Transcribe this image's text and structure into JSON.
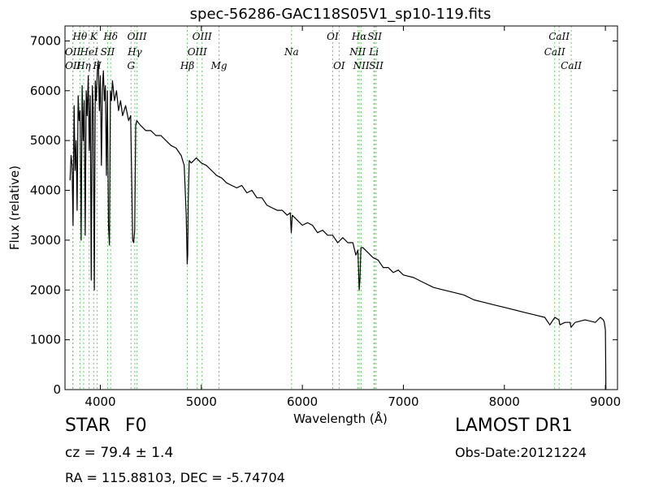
{
  "chart_data": {
    "type": "line",
    "title": "spec-56286-GAC118S05V1_sp10-119.fits",
    "xlabel": "Wavelength (Å)",
    "ylabel": "Flux (relative)",
    "xlim": [
      3650,
      9120
    ],
    "ylim": [
      0,
      7300
    ],
    "xticks": [
      4000,
      5000,
      6000,
      7000,
      8000,
      9000
    ],
    "yticks": [
      0,
      1000,
      2000,
      3000,
      4000,
      5000,
      6000,
      7000
    ],
    "grid": false,
    "line_color": "#000000",
    "marker_color": "#66cc66",
    "series": [
      {
        "x": [
          3700,
          3710,
          3720,
          3730,
          3740,
          3750,
          3760,
          3770,
          3780,
          3790,
          3800,
          3810,
          3820,
          3830,
          3840,
          3850,
          3860,
          3870,
          3880,
          3890,
          3900,
          3910,
          3920,
          3930,
          3940,
          3950,
          3960,
          3970,
          3980,
          3990,
          4000,
          4010,
          4020,
          4030,
          4040,
          4050,
          4060,
          4070,
          4080,
          4090,
          4100,
          4110,
          4120,
          4140,
          4160,
          4180,
          4200,
          4220,
          4250,
          4280,
          4300,
          4320,
          4330,
          4340,
          4350,
          4360,
          4380,
          4400,
          4450,
          4500,
          4550,
          4600,
          4650,
          4700,
          4750,
          4800,
          4830,
          4850,
          4860,
          4865,
          4870,
          4880,
          4900,
          4950,
          5000,
          5050,
          5100,
          5150,
          5200,
          5250,
          5300,
          5350,
          5400,
          5450,
          5500,
          5550,
          5600,
          5650,
          5700,
          5750,
          5800,
          5850,
          5880,
          5890,
          5900,
          5950,
          6000,
          6050,
          6100,
          6150,
          6200,
          6250,
          6300,
          6350,
          6400,
          6450,
          6500,
          6530,
          6550,
          6560,
          6563,
          6570,
          6580,
          6600,
          6650,
          6700,
          6750,
          6800,
          6850,
          6900,
          6950,
          7000,
          7100,
          7200,
          7300,
          7400,
          7500,
          7600,
          7700,
          7800,
          7900,
          8000,
          8100,
          8200,
          8300,
          8400,
          8450,
          8500,
          8540,
          8550,
          8600,
          8650,
          8660,
          8700,
          8800,
          8900,
          8950,
          8980,
          8990,
          9000,
          9003,
          9005,
          9010
        ],
        "y": [
          4200,
          4700,
          4500,
          3300,
          5700,
          4400,
          5000,
          3600,
          5900,
          5400,
          5600,
          3000,
          6100,
          5000,
          5800,
          3100,
          6000,
          5500,
          6300,
          4800,
          5900,
          2200,
          6100,
          5600,
          2000,
          6200,
          5800,
          6400,
          6600,
          5600,
          6300,
          4500,
          6000,
          6400,
          5800,
          6100,
          4300,
          6000,
          3300,
          2900,
          6000,
          5800,
          6200,
          5800,
          6000,
          5600,
          5800,
          5500,
          5700,
          5400,
          5500,
          3000,
          2950,
          3200,
          5300,
          5400,
          5350,
          5300,
          5200,
          5200,
          5100,
          5100,
          5000,
          4900,
          4850,
          4700,
          4500,
          3500,
          2520,
          2700,
          3800,
          4600,
          4550,
          4650,
          4550,
          4500,
          4400,
          4300,
          4250,
          4150,
          4100,
          4050,
          4100,
          3950,
          4000,
          3850,
          3850,
          3700,
          3650,
          3600,
          3600,
          3500,
          3550,
          3150,
          3500,
          3400,
          3300,
          3350,
          3300,
          3150,
          3200,
          3100,
          3100,
          2950,
          3050,
          2950,
          2950,
          2700,
          2800,
          2150,
          2000,
          2200,
          2850,
          2850,
          2750,
          2650,
          2600,
          2450,
          2450,
          2350,
          2400,
          2300,
          2250,
          2150,
          2050,
          2000,
          1950,
          1900,
          1800,
          1750,
          1700,
          1650,
          1600,
          1550,
          1500,
          1450,
          1300,
          1450,
          1400,
          1300,
          1350,
          1350,
          1250,
          1350,
          1400,
          1350,
          1450,
          1400,
          1350,
          1200,
          500,
          0,
          0
        ]
      }
    ],
    "lines": [
      {
        "label": "OII",
        "x": 3727,
        "row": 1
      },
      {
        "label": "OII",
        "x": 3729,
        "row": 2
      },
      {
        "label": "Hθ",
        "x": 3798,
        "row": 0
      },
      {
        "label": "Hη",
        "x": 3835,
        "row": 2
      },
      {
        "label": "HeI",
        "x": 3889,
        "row": 1
      },
      {
        "label": "K",
        "x": 3934,
        "row": 0
      },
      {
        "label": "H",
        "x": 3969,
        "row": 2
      },
      {
        "label": "SII",
        "x": 4072,
        "row": 1
      },
      {
        "label": "Hδ",
        "x": 4102,
        "row": 0
      },
      {
        "label": "G",
        "x": 4304,
        "row": 2
      },
      {
        "label": "Hγ",
        "x": 4341,
        "row": 1
      },
      {
        "label": "OIII",
        "x": 4363,
        "row": 0
      },
      {
        "label": "Hβ",
        "x": 4861,
        "row": 2
      },
      {
        "label": "OIII",
        "x": 4959,
        "row": 1
      },
      {
        "label": "OIII",
        "x": 5007,
        "row": 0
      },
      {
        "label": "Mg",
        "x": 5175,
        "row": 2
      },
      {
        "label": "Na",
        "x": 5893,
        "row": 1
      },
      {
        "label": "OI",
        "x": 6300,
        "row": 0
      },
      {
        "label": "OI",
        "x": 6364,
        "row": 2
      },
      {
        "label": "NII",
        "x": 6548,
        "row": 1
      },
      {
        "label": "Hα",
        "x": 6563,
        "row": 0
      },
      {
        "label": "NII",
        "x": 6583,
        "row": 2
      },
      {
        "label": "Li",
        "x": 6708,
        "row": 1
      },
      {
        "label": "SII",
        "x": 6716,
        "row": 0
      },
      {
        "label": "SII",
        "x": 6731,
        "row": 2
      },
      {
        "label": "CaII",
        "x": 8498,
        "row": 1
      },
      {
        "label": "CaII",
        "x": 8542,
        "row": 0
      },
      {
        "label": "CaII",
        "x": 8662,
        "row": 2
      }
    ]
  },
  "info": {
    "class": "STAR",
    "subclass": "F0",
    "survey": "LAMOST DR1",
    "cz": "cz = 79.4  ± 1.4",
    "obs_date": "Obs-Date:20121224",
    "radec": "RA = 115.88103, DEC = -5.74704"
  }
}
